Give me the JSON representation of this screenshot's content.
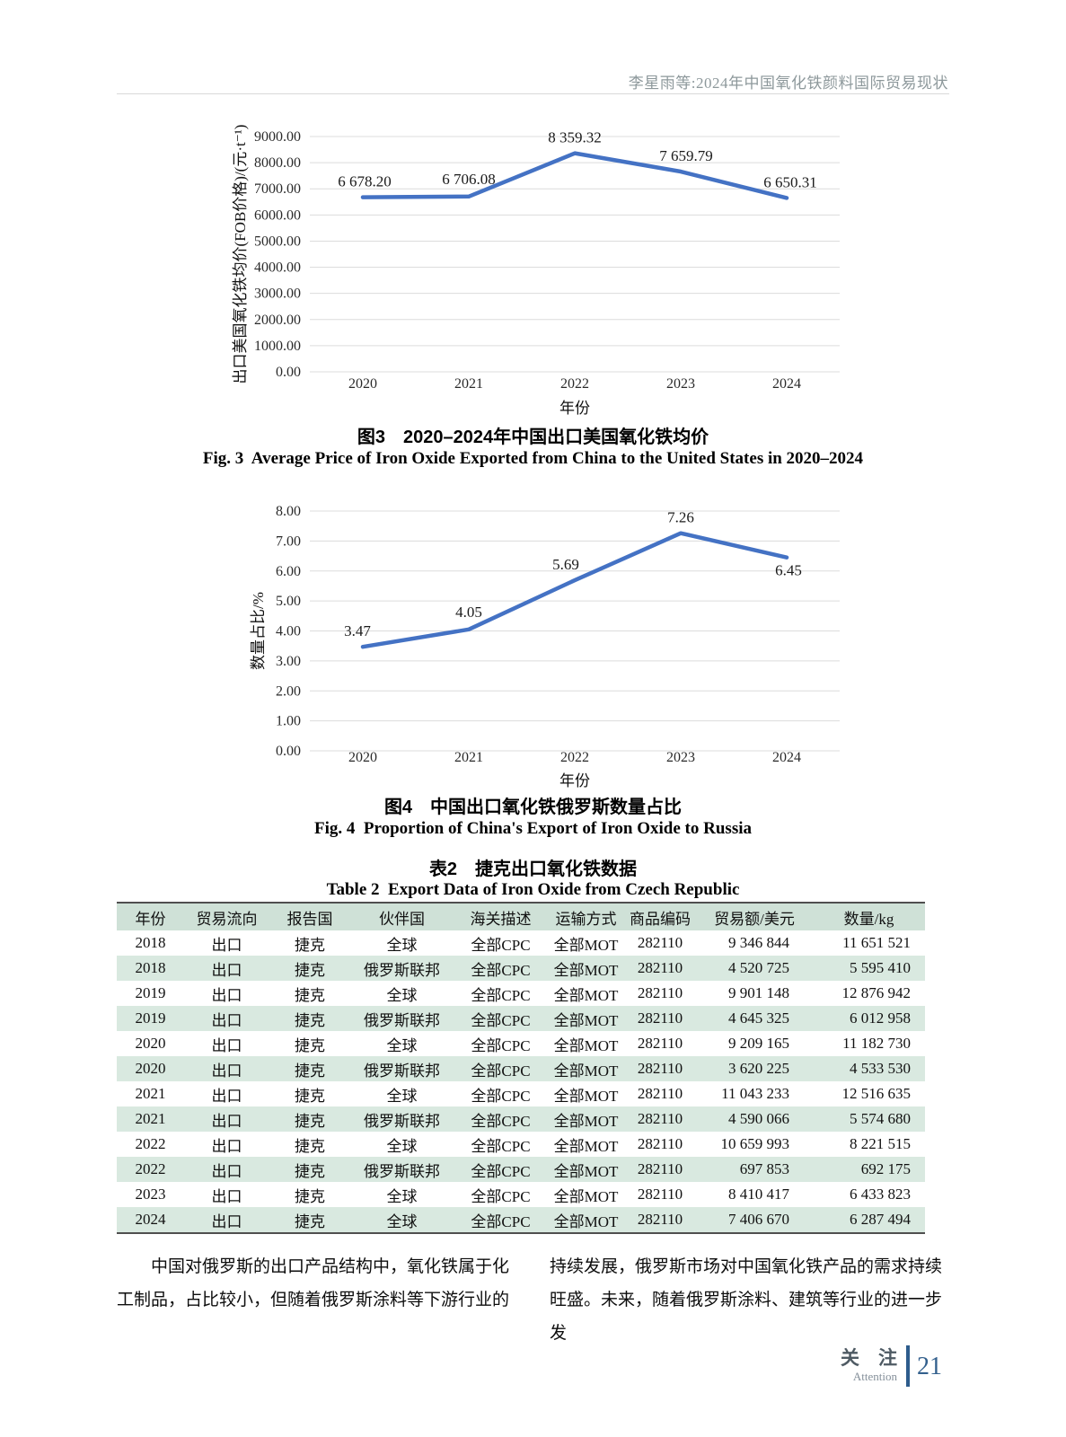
{
  "header": {
    "running_title": "李星雨等:2024年中国氧化铁颜料国际贸易现状"
  },
  "chart_data": [
    {
      "type": "line",
      "title_zh": "图3　2020–2024年中国出口美国氧化铁均价",
      "title_en": "Fig. 3  Average Price of Iron Oxide Exported from China to the United States in 2020–2024",
      "categories": [
        "2020",
        "2021",
        "2022",
        "2023",
        "2024"
      ],
      "values": [
        6678.2,
        6706.08,
        8359.32,
        7659.79,
        6650.31
      ],
      "point_labels": [
        "6 678.20",
        "6 706.08",
        "8 359.32",
        "7 659.79",
        "6 650.31"
      ],
      "xlabel": "年份",
      "ylabel": "出口美国氧化铁均价(FOB价格)/(元·t⁻¹)",
      "ylim": [
        0,
        9000
      ],
      "ytick_step": 1000,
      "grid": true,
      "legend": "none",
      "line_color": "#4472c4"
    },
    {
      "type": "line",
      "title_zh": "图4　中国出口氧化铁俄罗斯数量占比",
      "title_en": "Fig. 4  Proportion of China's Export of Iron Oxide to Russia",
      "categories": [
        "2020",
        "2021",
        "2022",
        "2023",
        "2024"
      ],
      "values": [
        3.47,
        4.05,
        5.69,
        7.26,
        6.45
      ],
      "point_labels": [
        "3.47",
        "4.05",
        "5.69",
        "7.26",
        "6.45"
      ],
      "xlabel": "年份",
      "ylabel": "数量占比/%",
      "ylim": [
        0,
        8
      ],
      "ytick_step": 1,
      "grid": true,
      "legend": "none",
      "line_color": "#4472c4"
    }
  ],
  "table2": {
    "caption_zh": "表2　捷克出口氧化铁数据",
    "caption_en": "Table 2  Export Data of Iron Oxide from Czech Republic",
    "columns": [
      "年份",
      "贸易流向",
      "报告国",
      "伙伴国",
      "海关描述",
      "运输方式",
      "商品编码",
      "贸易额/美元",
      "数量/kg"
    ],
    "rows": [
      [
        "2018",
        "出口",
        "捷克",
        "全球",
        "全部CPC",
        "全部MOT",
        "282110",
        "9 346 844",
        "11 651 521"
      ],
      [
        "2018",
        "出口",
        "捷克",
        "俄罗斯联邦",
        "全部CPC",
        "全部MOT",
        "282110",
        "4 520 725",
        "5 595 410"
      ],
      [
        "2019",
        "出口",
        "捷克",
        "全球",
        "全部CPC",
        "全部MOT",
        "282110",
        "9 901 148",
        "12 876 942"
      ],
      [
        "2019",
        "出口",
        "捷克",
        "俄罗斯联邦",
        "全部CPC",
        "全部MOT",
        "282110",
        "4 645 325",
        "6 012 958"
      ],
      [
        "2020",
        "出口",
        "捷克",
        "全球",
        "全部CPC",
        "全部MOT",
        "282110",
        "9 209 165",
        "11 182 730"
      ],
      [
        "2020",
        "出口",
        "捷克",
        "俄罗斯联邦",
        "全部CPC",
        "全部MOT",
        "282110",
        "3 620 225",
        "4 533 530"
      ],
      [
        "2021",
        "出口",
        "捷克",
        "全球",
        "全部CPC",
        "全部MOT",
        "282110",
        "11 043 233",
        "12 516 635"
      ],
      [
        "2021",
        "出口",
        "捷克",
        "俄罗斯联邦",
        "全部CPC",
        "全部MOT",
        "282110",
        "4 590 066",
        "5 574 680"
      ],
      [
        "2022",
        "出口",
        "捷克",
        "全球",
        "全部CPC",
        "全部MOT",
        "282110",
        "10 659 993",
        "8 221 515"
      ],
      [
        "2022",
        "出口",
        "捷克",
        "俄罗斯联邦",
        "全部CPC",
        "全部MOT",
        "282110",
        "697 853",
        "692 175"
      ],
      [
        "2023",
        "出口",
        "捷克",
        "全球",
        "全部CPC",
        "全部MOT",
        "282110",
        "8 410 417",
        "6 433 823"
      ],
      [
        "2024",
        "出口",
        "捷克",
        "全球",
        "全部CPC",
        "全部MOT",
        "282110",
        "7 406 670",
        "6 287 494"
      ]
    ]
  },
  "body_text": {
    "left_column": "中国对俄罗斯的出口产品结构中，氧化铁属于化\n工制品，占比较小，但随着俄罗斯涂料等下游行业的",
    "right_column": "持续发展，俄罗斯市场对中国氧化铁产品的需求持续\n旺盛。未来，随着俄罗斯涂料、建筑等行业的进一步发"
  },
  "footer": {
    "section_zh": "关　注",
    "section_en": "Attention",
    "page_number": "21"
  },
  "theme": {
    "line_color": "#4472c4",
    "gridline_color": "#dcdcdc",
    "table_header_bg": "#cfe1d7",
    "table_alt_row_bg": "#d9e9e0",
    "running_head_color": "#8d989b",
    "footer_blue": "#2d5c8c"
  }
}
